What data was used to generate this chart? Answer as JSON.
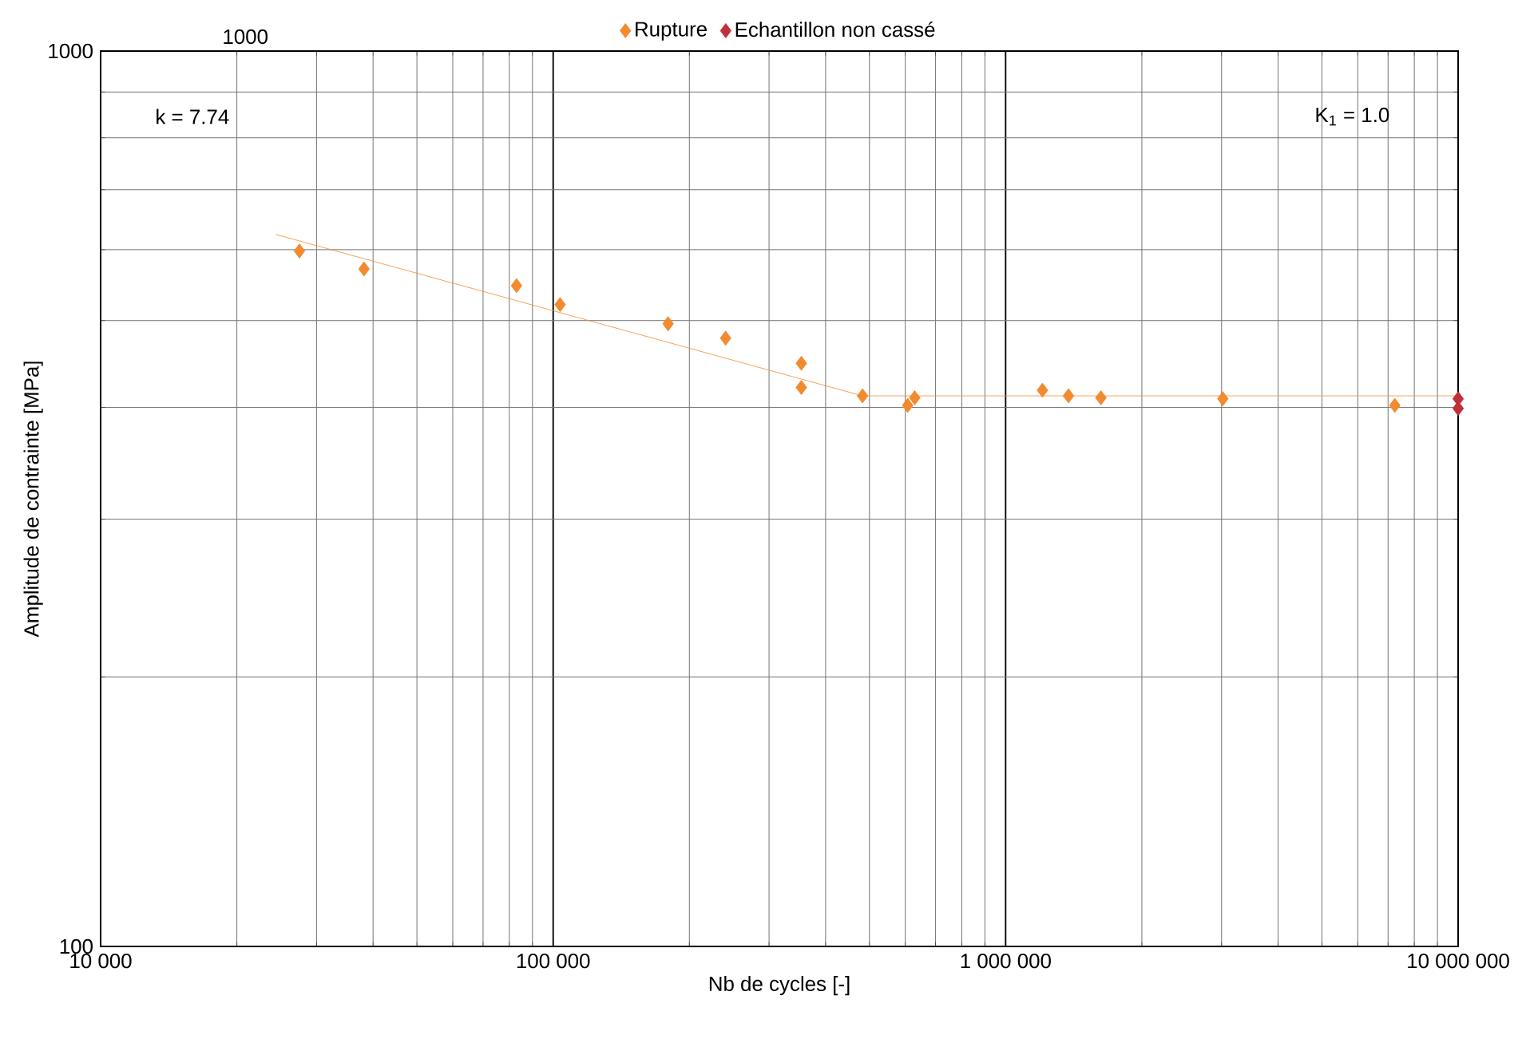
{
  "chart_data": {
    "type": "scatter",
    "xlabel": "Nb de cycles [-]",
    "ylabel": "Amplitude de contrainte [MPa]",
    "annotations": [
      "1000",
      "k = 7.74",
      "K$_{1}$ = 1.0"
    ],
    "log": "xy",
    "grid": true,
    "legend": "top",
    "marker": "diamond",
    "xlim": [
      10000,
      10000000
    ],
    "ylim": [
      100,
      1000
    ],
    "xticks": [
      {
        "value": 10000,
        "label": "10 000"
      },
      {
        "value": 100000,
        "label": "100 000"
      },
      {
        "value": 1000000,
        "label": "1 000 000"
      },
      {
        "value": 10000000,
        "label": "10 000 000"
      }
    ],
    "yticks": [
      100,
      1000
    ],
    "series": [
      {
        "name": "Rupture",
        "color": "#f28a2e",
        "x": [
          27500,
          38200,
          83000,
          103600,
          179500,
          240500,
          353600,
          353600,
          482800,
          607500,
          629600,
          1206000,
          1377000,
          1624000,
          3020000,
          7245000
        ],
        "values": [
          598,
          571,
          547,
          521,
          496,
          478,
          448,
          421,
          412,
          402,
          410,
          418,
          412,
          410,
          409,
          402
        ]
      },
      {
        "name": "Echantillon non cassé",
        "color": "#c0303a",
        "x": [
          10000000,
          10000000
        ],
        "values": [
          409,
          399
        ]
      },
      {
        "type": "line",
        "color": "#f28a2e",
        "marker": "none",
        "x": [
          24390,
          482800,
          10000000
        ],
        "values": [
          624,
          412,
          412
        ]
      }
    ]
  }
}
